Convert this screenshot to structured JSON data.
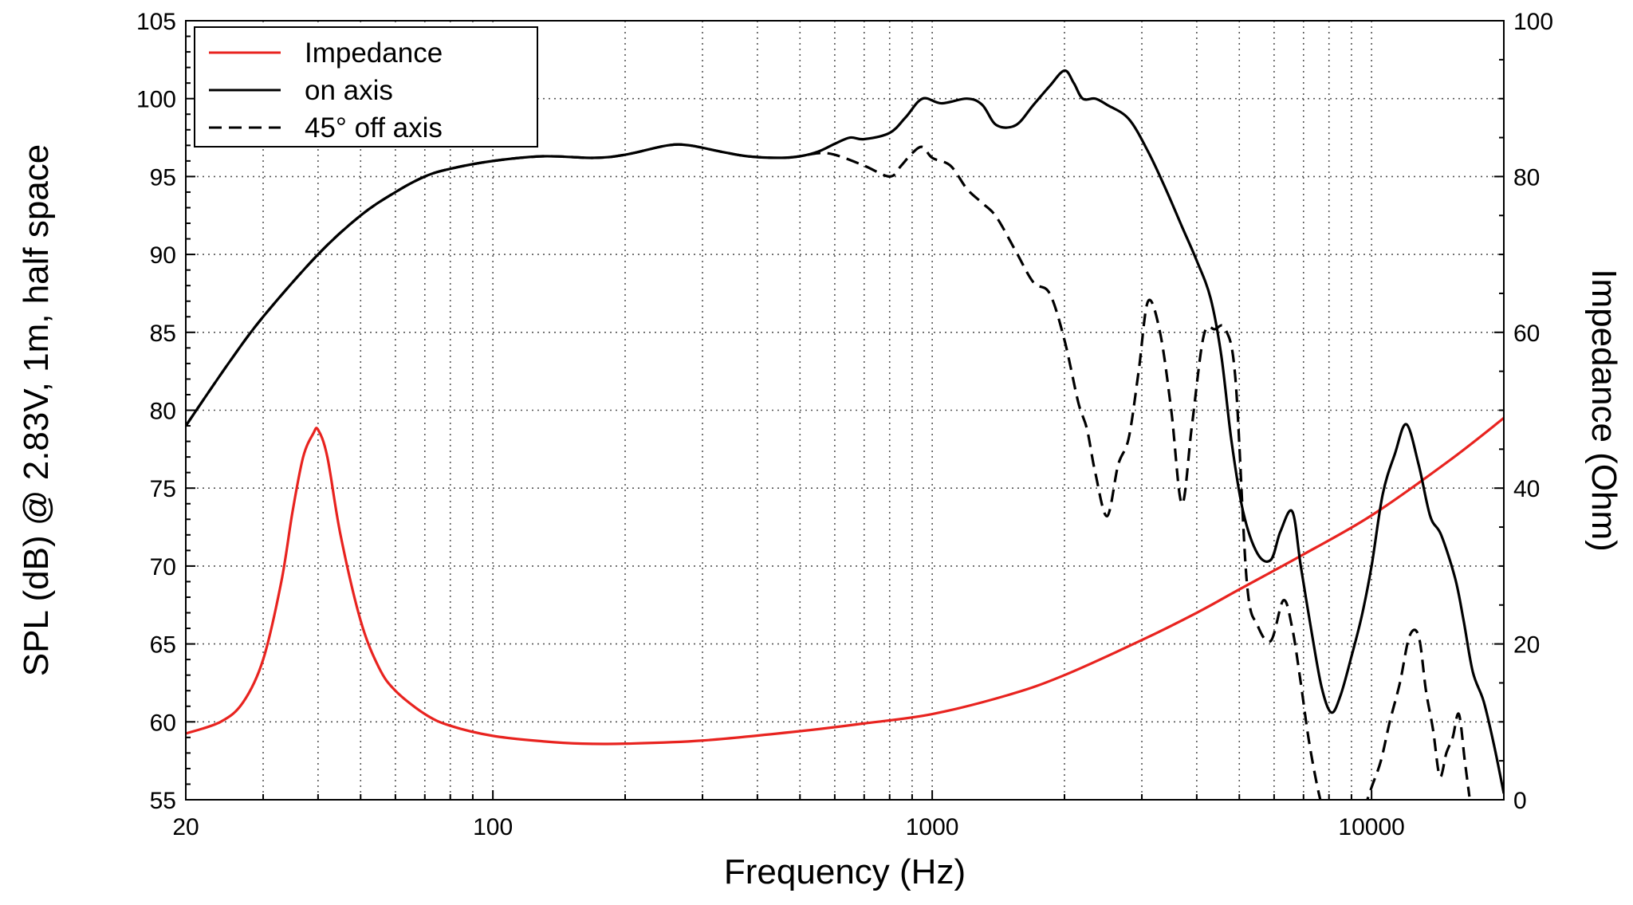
{
  "chart_data": {
    "type": "line",
    "xlabel": "Frequency (Hz)",
    "ylabel_left": "SPL (dB) @ 2.83V, 1m, half space",
    "ylabel_right": "Impedance (Ohm)",
    "x_scale": "log",
    "xlim": [
      20,
      20000
    ],
    "ylim_left": [
      55,
      105
    ],
    "ylim_right": [
      0,
      100
    ],
    "grid": true,
    "legend_position": "top-left",
    "x_ticks": [
      {
        "value": 20,
        "label": "20"
      },
      {
        "value": 100,
        "label": "100"
      },
      {
        "value": 1000,
        "label": "1000"
      },
      {
        "value": 10000,
        "label": "10000"
      }
    ],
    "y_ticks_left": [
      {
        "value": 55,
        "label": "55"
      },
      {
        "value": 60,
        "label": "60"
      },
      {
        "value": 65,
        "label": "65"
      },
      {
        "value": 70,
        "label": "70"
      },
      {
        "value": 75,
        "label": "75"
      },
      {
        "value": 80,
        "label": "80"
      },
      {
        "value": 85,
        "label": "85"
      },
      {
        "value": 90,
        "label": "90"
      },
      {
        "value": 95,
        "label": "95"
      },
      {
        "value": 100,
        "label": "100"
      },
      {
        "value": 105,
        "label": "105"
      }
    ],
    "y_ticks_right": [
      {
        "value": 0,
        "label": "0"
      },
      {
        "value": 20,
        "label": "20"
      },
      {
        "value": 40,
        "label": "40"
      },
      {
        "value": 60,
        "label": "60"
      },
      {
        "value": 80,
        "label": "80"
      },
      {
        "value": 100,
        "label": "100"
      }
    ],
    "series": [
      {
        "name": "Impedance",
        "axis": "right",
        "color": "#e8231f",
        "dash": "solid",
        "x": [
          20,
          24,
          27,
          30,
          33,
          35,
          37,
          39,
          40,
          42,
          45,
          50,
          55,
          60,
          70,
          80,
          100,
          130,
          160,
          200,
          300,
          500,
          700,
          1000,
          1500,
          2000,
          3000,
          4000,
          5000,
          7000,
          10000,
          15000,
          20000
        ],
        "y": [
          8.5,
          10,
          12.5,
          18,
          28,
          37,
          44,
          47,
          47.5,
          44,
          34,
          23,
          17,
          14,
          11,
          9.5,
          8.2,
          7.5,
          7.2,
          7.2,
          7.6,
          8.8,
          9.8,
          11,
          13.5,
          16,
          20.5,
          24,
          27,
          31.5,
          36.5,
          43.5,
          49
        ]
      },
      {
        "name": "on axis",
        "axis": "left",
        "color": "#000000",
        "dash": "solid",
        "x": [
          20,
          25,
          30,
          40,
          50,
          60,
          70,
          80,
          100,
          130,
          170,
          200,
          250,
          280,
          330,
          380,
          450,
          500,
          550,
          600,
          650,
          700,
          800,
          870,
          950,
          1050,
          1200,
          1300,
          1400,
          1550,
          1700,
          1850,
          2000,
          2100,
          2200,
          2350,
          2500,
          2800,
          3100,
          3400,
          3700,
          4000,
          4300,
          4550,
          4800,
          5100,
          5500,
          5900,
          6200,
          6600,
          6900,
          7300,
          7700,
          8100,
          8500,
          9000,
          9500,
          10000,
          10600,
          11300,
          12000,
          12800,
          13600,
          14400,
          15500,
          16200,
          17000,
          18000,
          19000,
          20000
        ],
        "y": [
          79,
          83,
          86,
          90,
          92.5,
          94,
          95,
          95.5,
          96,
          96.3,
          96.2,
          96.4,
          97,
          97,
          96.6,
          96.3,
          96.2,
          96.3,
          96.6,
          97.1,
          97.5,
          97.4,
          97.8,
          98.8,
          100,
          99.7,
          100,
          99.6,
          98.3,
          98.3,
          99.6,
          100.8,
          101.8,
          101,
          100,
          100,
          99.6,
          98.7,
          96.6,
          94.2,
          91.8,
          89.6,
          87.2,
          83.5,
          78,
          73.5,
          70.8,
          70.4,
          72.2,
          73.5,
          70,
          65.8,
          62.2,
          60.6,
          61.7,
          64.2,
          66.8,
          70,
          74.6,
          77.2,
          79.1,
          76.5,
          73.2,
          72,
          69.2,
          66.5,
          63.2,
          61.3,
          58.5,
          55.4
        ]
      },
      {
        "name": "45° off axis",
        "axis": "left",
        "color": "#000000",
        "dash": "dashed",
        "x": [
          20,
          25,
          30,
          40,
          50,
          60,
          70,
          80,
          100,
          130,
          170,
          200,
          250,
          280,
          330,
          380,
          450,
          500,
          550,
          600,
          700,
          800,
          850,
          900,
          950,
          1000,
          1100,
          1200,
          1300,
          1400,
          1550,
          1700,
          1850,
          2000,
          2150,
          2250,
          2350,
          2500,
          2650,
          2800,
          2950,
          3100,
          3300,
          3500,
          3700,
          3900,
          4150,
          4400,
          4650,
          4900,
          5200,
          5500,
          5900,
          6300,
          6600,
          6900,
          7200,
          7600,
          8000,
          8500,
          9000,
          9500,
          10000,
          10500,
          11000,
          11600,
          12200,
          12800,
          13300,
          13800,
          14300,
          14800,
          15300,
          15800,
          16300,
          16700
        ],
        "y": [
          79,
          83,
          86,
          90,
          92.5,
          94,
          95,
          95.5,
          96,
          96.3,
          96.2,
          96.4,
          97,
          97,
          96.6,
          96.3,
          96.2,
          96.3,
          96.5,
          96.4,
          95.7,
          95,
          95.7,
          96.5,
          96.9,
          96.2,
          95.7,
          94.2,
          93.3,
          92.4,
          90.2,
          88.2,
          87.5,
          84.5,
          80.5,
          78.8,
          76,
          73.2,
          76.5,
          78.2,
          82.5,
          87,
          85,
          80,
          74,
          79,
          84.8,
          85.2,
          85.2,
          82,
          69,
          66.2,
          65.2,
          67.8,
          66,
          62.5,
          58.8,
          55.3,
          53.2,
          52.5,
          52.5,
          54,
          55.8,
          57.5,
          60,
          62.5,
          65.5,
          65.5,
          62,
          59.5,
          56.5,
          58,
          59,
          60.5,
          57.5,
          55.2
        ]
      }
    ]
  }
}
